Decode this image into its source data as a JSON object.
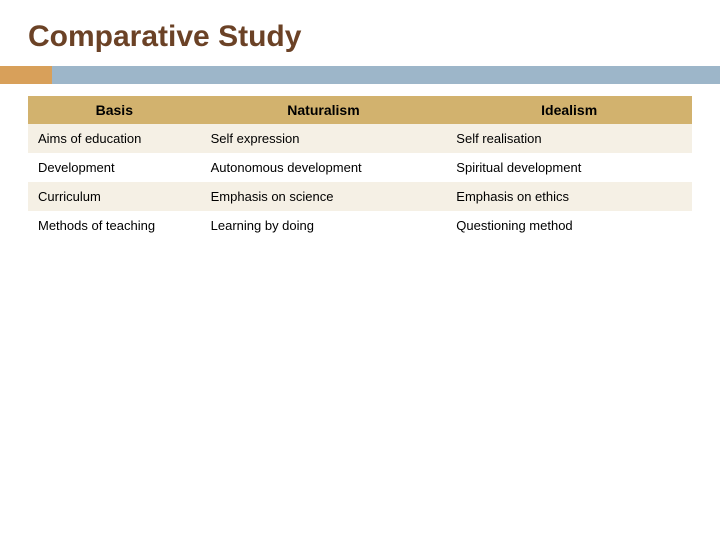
{
  "title": "Comparative Study",
  "colors": {
    "title_color": "#6b4226",
    "accent_bar": "#d8a05a",
    "main_bar": "#9db6c9",
    "header_bg": "#d2b26e",
    "row_odd_bg": "#f5f0e5",
    "row_even_bg": "#ffffff",
    "text_color": "#000000"
  },
  "table": {
    "columns": [
      "Basis",
      "Naturalism",
      "Idealism"
    ],
    "rows": [
      [
        "Aims of education",
        "Self expression",
        "Self realisation"
      ],
      [
        "Development",
        "Autonomous development",
        "Spiritual development"
      ],
      [
        "Curriculum",
        "Emphasis on science",
        "Emphasis on ethics"
      ],
      [
        "Methods of teaching",
        "Learning by doing",
        "Questioning method"
      ]
    ]
  }
}
